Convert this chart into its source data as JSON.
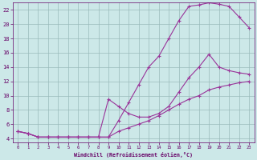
{
  "xlabel": "Windchill (Refroidissement éolien,°C)",
  "bg_color": "#cce8e8",
  "line_color": "#993399",
  "grid_color": "#99bbbb",
  "xlim": [
    -0.5,
    23.5
  ],
  "ylim": [
    3.5,
    23
  ],
  "xticks": [
    0,
    1,
    2,
    3,
    4,
    5,
    6,
    7,
    8,
    9,
    10,
    11,
    12,
    13,
    14,
    15,
    16,
    17,
    18,
    19,
    20,
    21,
    22,
    23
  ],
  "yticks": [
    4,
    6,
    8,
    10,
    12,
    14,
    16,
    18,
    20,
    22
  ],
  "curve1_x": [
    0,
    1,
    2,
    3,
    4,
    5,
    6,
    7,
    8,
    9,
    10,
    11,
    12,
    13,
    14,
    15,
    16,
    17,
    18,
    19,
    20,
    21,
    22,
    23
  ],
  "curve1_y": [
    5.0,
    4.7,
    4.2,
    4.2,
    4.2,
    4.2,
    4.2,
    4.2,
    4.2,
    4.2,
    6.5,
    9.0,
    11.5,
    14.0,
    15.5,
    18.0,
    20.5,
    22.5,
    22.7,
    23.0,
    22.8,
    22.5,
    21.0,
    19.5
  ],
  "curve2_x": [
    0,
    1,
    2,
    3,
    4,
    5,
    6,
    7,
    8,
    9,
    10,
    11,
    12,
    13,
    14,
    15,
    16,
    17,
    18,
    19,
    20,
    21,
    22,
    23
  ],
  "curve2_y": [
    5.0,
    4.7,
    4.2,
    4.2,
    4.2,
    4.2,
    4.2,
    4.2,
    4.2,
    9.5,
    8.5,
    7.5,
    7.0,
    7.0,
    7.5,
    8.5,
    10.5,
    12.5,
    14.0,
    15.8,
    14.0,
    13.5,
    13.2,
    13.0
  ],
  "curve3_x": [
    0,
    1,
    2,
    3,
    4,
    5,
    6,
    7,
    8,
    9,
    10,
    11,
    12,
    13,
    14,
    15,
    16,
    17,
    18,
    19,
    20,
    21,
    22,
    23
  ],
  "curve3_y": [
    5.0,
    4.7,
    4.2,
    4.2,
    4.2,
    4.2,
    4.2,
    4.2,
    4.2,
    4.2,
    5.0,
    5.5,
    6.0,
    6.5,
    7.2,
    8.0,
    8.8,
    9.5,
    10.0,
    10.8,
    11.2,
    11.5,
    11.8,
    12.0
  ]
}
